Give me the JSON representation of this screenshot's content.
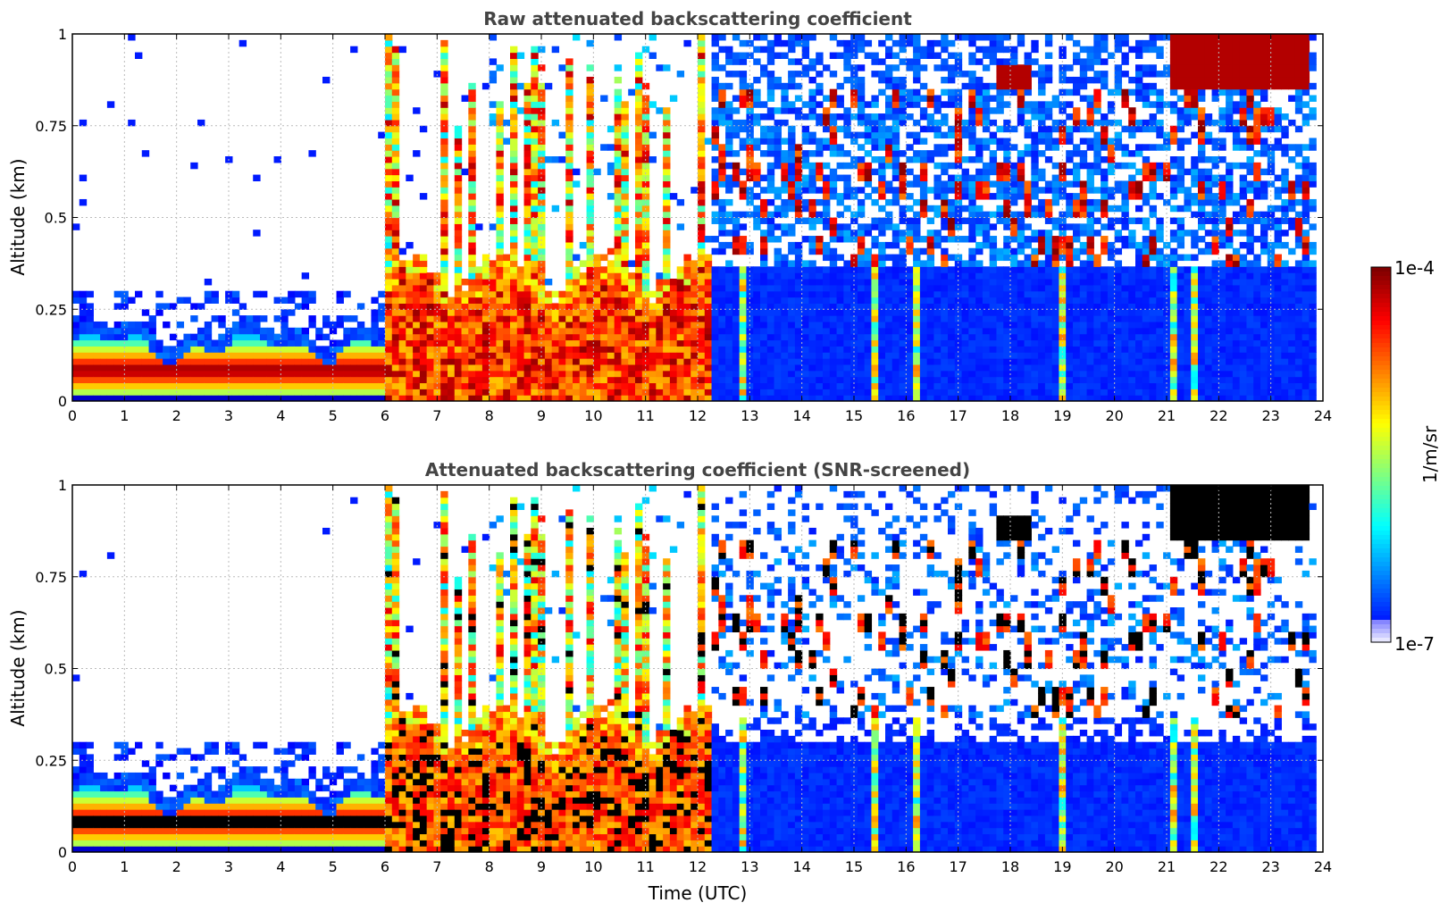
{
  "chart_data": [
    {
      "type": "heatmap",
      "title": "Raw attenuated backscattering coefficient",
      "xlabel": "",
      "ylabel": "Altitude (km)",
      "xlim": [
        0,
        24
      ],
      "ylim": [
        0,
        1
      ],
      "xticks": [
        "0",
        "1",
        "2",
        "3",
        "4",
        "5",
        "6",
        "7",
        "8",
        "9",
        "10",
        "11",
        "12",
        "13",
        "14",
        "15",
        "16",
        "17",
        "18",
        "19",
        "20",
        "21",
        "22",
        "23",
        "24"
      ],
      "yticks": [
        "0",
        "0.25",
        "0.5",
        "0.75",
        "1"
      ],
      "grid": true,
      "screened": false,
      "features": [
        {
          "t0": 0,
          "t1": 6,
          "layer_top_km": 0.2,
          "peak_km": 0.08
        },
        {
          "t0": 6,
          "t1": 12.3,
          "layer_top_km": 0.3,
          "peak_km": 0.1
        },
        {
          "t0": 12.3,
          "t1": 24,
          "layer_top_km": 0.35,
          "peak_km": 0.05
        }
      ]
    },
    {
      "type": "heatmap",
      "title": "Attenuated backscattering coefficient (SNR-screened)",
      "xlabel": "Time (UTC)",
      "ylabel": "Altitude (km)",
      "xlim": [
        0,
        24
      ],
      "ylim": [
        0,
        1
      ],
      "xticks": [
        "0",
        "1",
        "2",
        "3",
        "4",
        "5",
        "6",
        "7",
        "8",
        "9",
        "10",
        "11",
        "12",
        "13",
        "14",
        "15",
        "16",
        "17",
        "18",
        "19",
        "20",
        "21",
        "22",
        "23",
        "24"
      ],
      "yticks": [
        "0",
        "0.25",
        "0.5",
        "0.75",
        "1"
      ],
      "grid": true,
      "screened": true
    }
  ],
  "colorbar": {
    "label": "1/m/sr",
    "max_label": "1e-4",
    "min_label": "1e-7",
    "colormap": "jet",
    "scale": "log",
    "range": [
      1e-07,
      0.0001
    ]
  }
}
